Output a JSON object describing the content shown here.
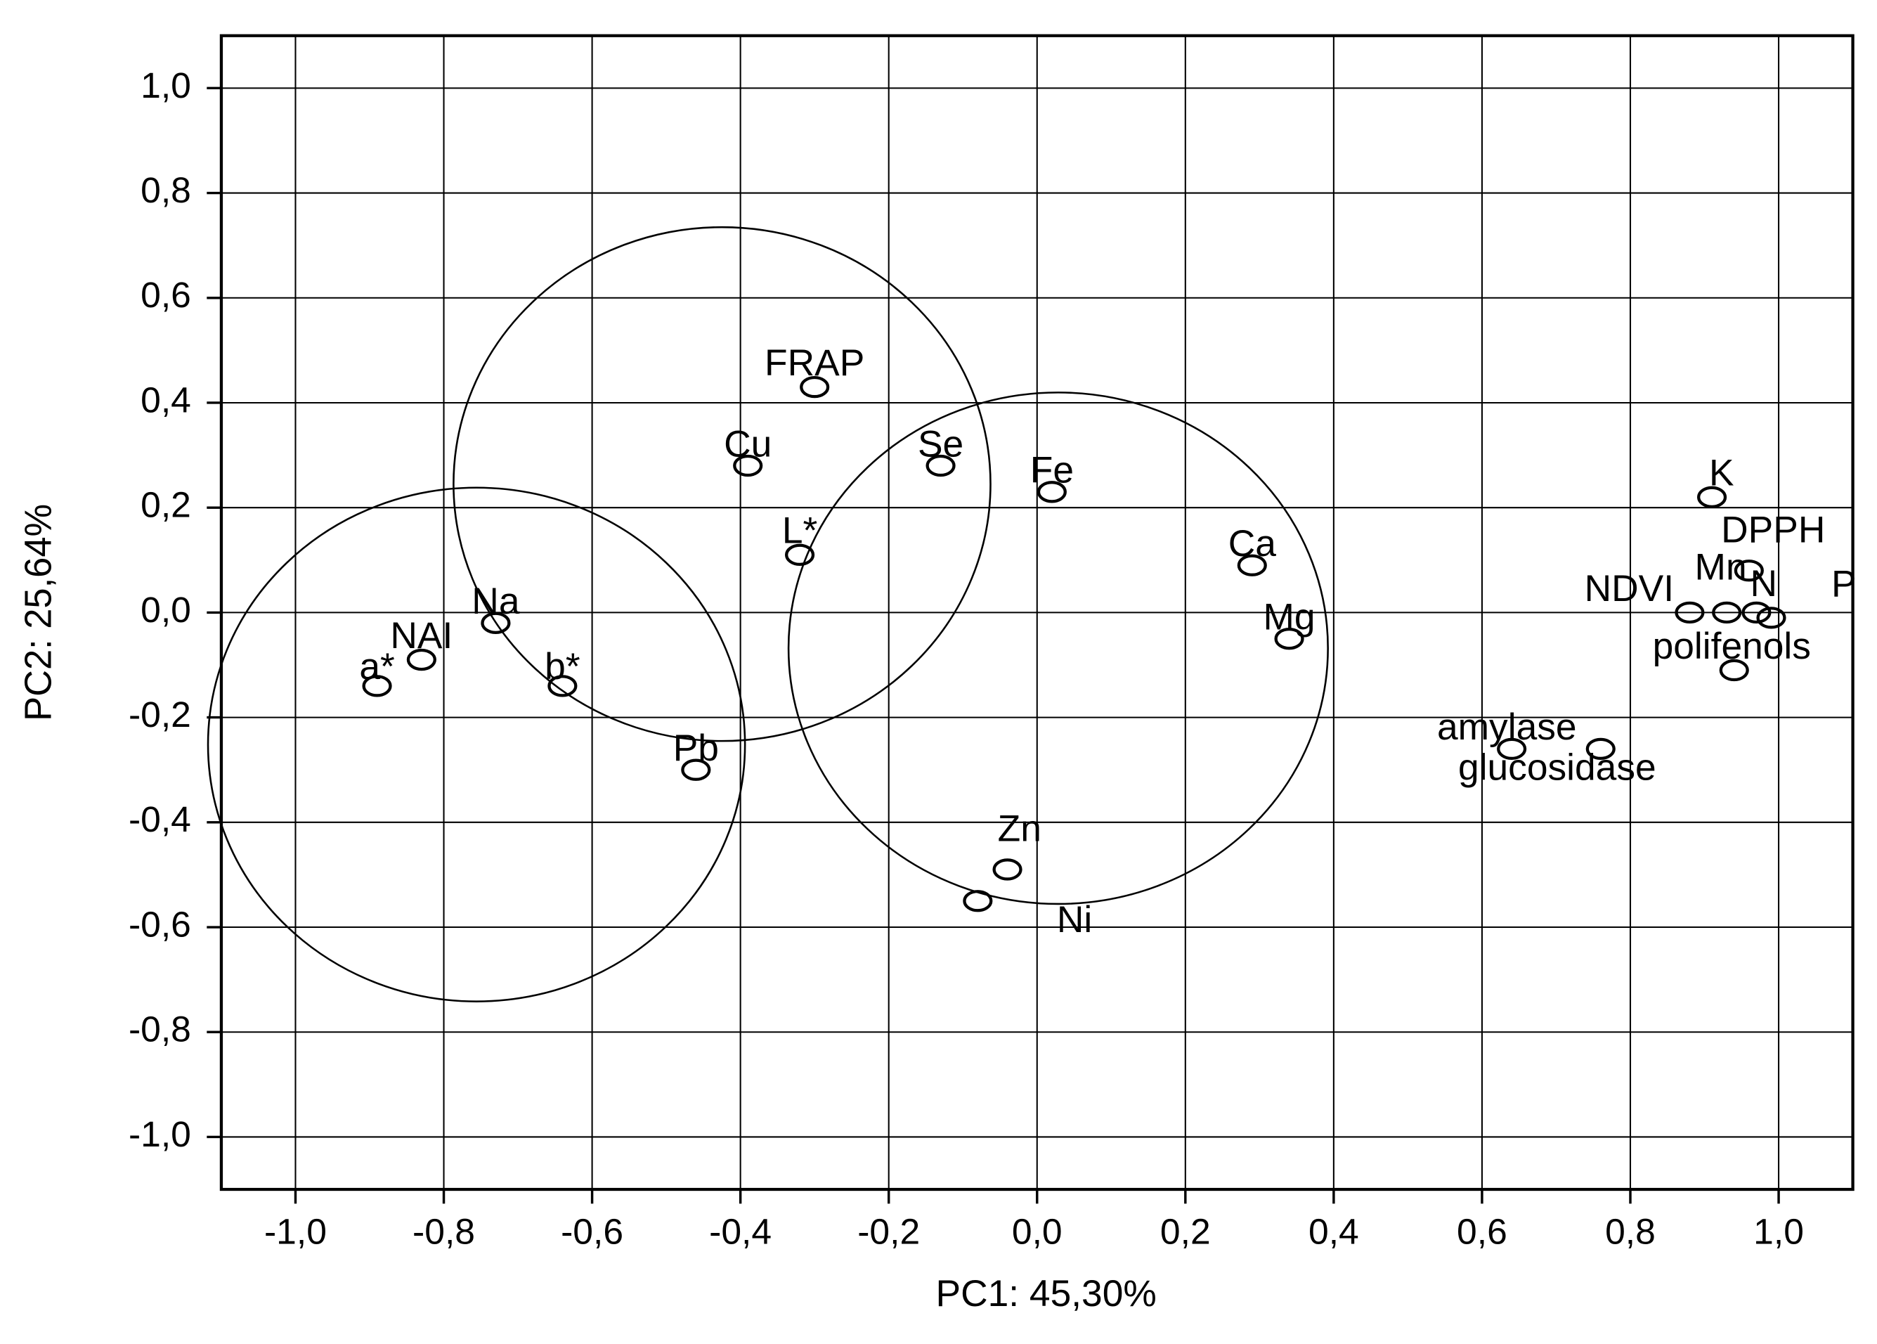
{
  "chart_data": {
    "type": "scatter",
    "xlabel": "PC1: 45,30%",
    "ylabel": "PC2: 25,64%",
    "point_labels": [
      "FRAP",
      "Cu",
      "Se",
      "Fe",
      "L*",
      "Ca",
      "Mg",
      "Na",
      "NAI",
      "a*",
      "b*",
      "Pb",
      "Zn",
      "Ni",
      "K",
      "DPPH",
      "Mn",
      "NDVI",
      "N",
      "P",
      "polifenols",
      "amylase",
      "glucosidase"
    ],
    "x": [
      -0.3,
      -0.39,
      -0.13,
      0.02,
      -0.32,
      0.29,
      0.34,
      -0.73,
      -0.83,
      -0.89,
      -0.64,
      -0.46,
      -0.04,
      -0.08,
      0.91,
      0.96,
      0.93,
      0.88,
      0.97,
      0.99,
      0.94,
      0.64,
      0.76
    ],
    "values": [
      0.43,
      0.28,
      0.28,
      0.23,
      0.11,
      0.09,
      -0.05,
      -0.02,
      -0.09,
      -0.14,
      -0.14,
      -0.3,
      -0.49,
      -0.55,
      0.22,
      0.08,
      0.0,
      0.0,
      0.0,
      -0.01,
      -0.11,
      -0.26,
      -0.26
    ],
    "color": "#000000",
    "xlim": [
      -1.1,
      1.1
    ],
    "ylim": [
      -1.1,
      1.1
    ],
    "xticks": [
      {
        "value": -1.0,
        "label": "-1,0"
      },
      {
        "value": -0.8,
        "label": "-0,8"
      },
      {
        "value": -0.6,
        "label": "-0,6"
      },
      {
        "value": -0.4,
        "label": "-0,4"
      },
      {
        "value": -0.2,
        "label": "-0,2"
      },
      {
        "value": 0.0,
        "label": "0,0"
      },
      {
        "value": 0.2,
        "label": "0,2"
      },
      {
        "value": 0.4,
        "label": "0,4"
      },
      {
        "value": 0.6,
        "label": "0,6"
      },
      {
        "value": 0.8,
        "label": "0,8"
      },
      {
        "value": 1.0,
        "label": "1,0"
      }
    ],
    "yticks": [
      {
        "value": -1.0,
        "label": "-1,0"
      },
      {
        "value": -0.8,
        "label": "-0,8"
      },
      {
        "value": -0.6,
        "label": "-0,6"
      },
      {
        "value": -0.4,
        "label": "-0,4"
      },
      {
        "value": -0.2,
        "label": "-0,2"
      },
      {
        "value": 0.0,
        "label": "0,0"
      },
      {
        "value": 0.2,
        "label": "0,2"
      },
      {
        "value": 0.4,
        "label": "0,4"
      },
      {
        "value": 0.6,
        "label": "0,6"
      },
      {
        "value": 0.8,
        "label": "0,8"
      },
      {
        "value": 1.0,
        "label": "1,0"
      }
    ],
    "grid": true
  }
}
